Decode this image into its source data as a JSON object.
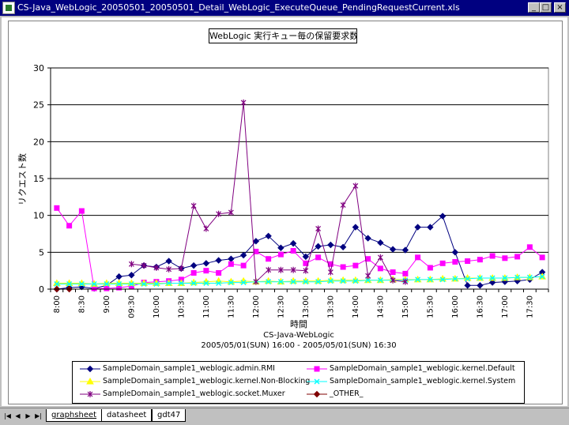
{
  "window": {
    "title": "CS-Java_WebLogic_20050501_20050501_Detail_WebLogic_ExecuteQueue_PendingRequestCurrent.xls",
    "min_label": "_",
    "max_label": "□",
    "close_label": "×"
  },
  "sheet_tabs": [
    {
      "label": "graphsheet",
      "active": true
    },
    {
      "label": "datasheet",
      "active": false
    },
    {
      "label": "gdt47",
      "active": false
    }
  ],
  "nav_buttons": [
    "|◀",
    "◀",
    "▶",
    "▶|"
  ],
  "chart_data": {
    "type": "line",
    "title": "WebLogic 実行キュー毎の保留要求数",
    "ylabel": "リクエスト数",
    "xlabel": "時間",
    "caption_lines": [
      "CS-Java-WebLogic",
      "2005/05/01(SUN) 16:00 - 2005/05/01(SUN) 16:30"
    ],
    "ylim": [
      0,
      30
    ],
    "yticks": [
      0,
      5,
      10,
      15,
      20,
      25,
      30
    ],
    "grid": "horizontal",
    "legend_position": "bottom",
    "x": [
      "8:00",
      "8:15",
      "8:30",
      "8:45",
      "9:00",
      "9:15",
      "9:30",
      "9:45",
      "10:00",
      "10:15",
      "10:30",
      "10:45",
      "11:00",
      "11:15",
      "11:30",
      "11:45",
      "12:00",
      "12:15",
      "12:30",
      "12:45",
      "13:00",
      "13:15",
      "13:30",
      "13:45",
      "14:00",
      "14:15",
      "14:30",
      "14:45",
      "15:00",
      "15:15",
      "15:30",
      "15:45",
      "16:00",
      "16:15",
      "16:30",
      "16:45",
      "17:00",
      "17:15",
      "17:30",
      "17:45"
    ],
    "xtick_labels": [
      "8:00",
      "8:30",
      "9:00",
      "09:30",
      "10:00",
      "10:30",
      "11:00",
      "11:30",
      "12:00",
      "12:30",
      "13:00",
      "13:30",
      "14:00",
      "14:30",
      "15:00",
      "15:30",
      "16:00",
      "16:30",
      "17:00",
      "17:30"
    ],
    "series": [
      {
        "name": "SampleDomain_sample1_weblogic.admin.RMI",
        "color": "#000080",
        "marker": "diamond",
        "values": [
          0,
          0.2,
          0.3,
          0.1,
          0.5,
          1.7,
          1.9,
          3.2,
          3.0,
          3.8,
          2.8,
          3.2,
          3.5,
          3.9,
          4.1,
          4.6,
          6.5,
          7.2,
          5.6,
          6.2,
          4.4,
          5.8,
          6.0,
          5.7,
          8.4,
          6.9,
          6.3,
          5.4,
          5.3,
          8.4,
          8.4,
          9.9,
          5.0,
          0.5,
          0.5,
          0.9,
          1.0,
          1.1,
          1.3,
          2.3
        ]
      },
      {
        "name": "SampleDomain_sample1_weblogic.kernel.Default",
        "color": "#ff00ff",
        "marker": "square",
        "values": [
          11.0,
          8.6,
          10.6,
          0.1,
          0.1,
          0.2,
          0.4,
          0.9,
          1.0,
          1.1,
          1.3,
          2.2,
          2.5,
          2.2,
          3.4,
          3.2,
          5.1,
          4.1,
          4.7,
          5.2,
          3.5,
          4.3,
          3.4,
          3.0,
          3.2,
          4.1,
          2.8,
          2.3,
          2.1,
          4.3,
          2.9,
          3.5,
          3.7,
          3.8,
          4.0,
          4.5,
          4.2,
          4.4,
          5.7,
          4.3
        ]
      },
      {
        "name": "SampleDomain_sample1_weblogic.kernel.Non-Blocking",
        "color": "#ffff00",
        "marker": "triangle",
        "values": [
          0.8,
          0.8,
          0.8,
          0.7,
          0.8,
          0.8,
          0.8,
          0.8,
          0.8,
          0.8,
          0.8,
          0.9,
          1.0,
          1.1,
          1.0,
          1.1,
          1.0,
          1.1,
          1.0,
          1.1,
          1.1,
          1.1,
          1.2,
          1.2,
          1.2,
          1.2,
          1.2,
          1.3,
          1.3,
          1.3,
          1.3,
          1.4,
          1.4,
          1.5,
          1.5,
          1.5,
          1.5,
          1.6,
          1.6,
          1.7
        ]
      },
      {
        "name": "SampleDomain_sample1_weblogic.kernel.System",
        "color": "#00ffff",
        "marker": "x",
        "values": [
          0.7,
          0.7,
          0.7,
          0.7,
          0.7,
          0.7,
          0.7,
          0.7,
          0.7,
          0.8,
          0.8,
          0.8,
          0.8,
          0.8,
          0.9,
          0.9,
          1.0,
          1.0,
          1.0,
          1.0,
          1.0,
          1.0,
          1.1,
          1.1,
          1.1,
          1.2,
          1.2,
          1.2,
          1.2,
          1.3,
          1.3,
          1.3,
          1.4,
          1.4,
          1.5,
          1.5,
          1.5,
          1.6,
          1.6,
          1.7
        ]
      },
      {
        "name": "SampleDomain_sample1_weblogic.socket.Muxer",
        "color": "#800080",
        "marker": "star",
        "values": [
          null,
          null,
          null,
          null,
          null,
          null,
          3.4,
          3.2,
          2.9,
          2.7,
          2.8,
          11.3,
          8.2,
          10.2,
          10.4,
          25.3,
          1.0,
          2.6,
          2.6,
          2.6,
          2.5,
          8.2,
          2.3,
          11.4,
          14.0,
          1.8,
          4.3,
          1.2,
          1.0,
          null,
          null,
          null,
          null,
          null,
          null,
          null,
          null,
          null,
          null,
          null
        ]
      },
      {
        "name": "_OTHER_",
        "color": "#800000",
        "marker": "diamond",
        "values": [
          0,
          0,
          null,
          null,
          null,
          null,
          null,
          null,
          null,
          null,
          null,
          null,
          null,
          null,
          null,
          null,
          null,
          null,
          null,
          null,
          null,
          null,
          null,
          null,
          null,
          null,
          null,
          null,
          null,
          null,
          null,
          null,
          null,
          null,
          null,
          null,
          null,
          null,
          null,
          null
        ]
      }
    ]
  }
}
